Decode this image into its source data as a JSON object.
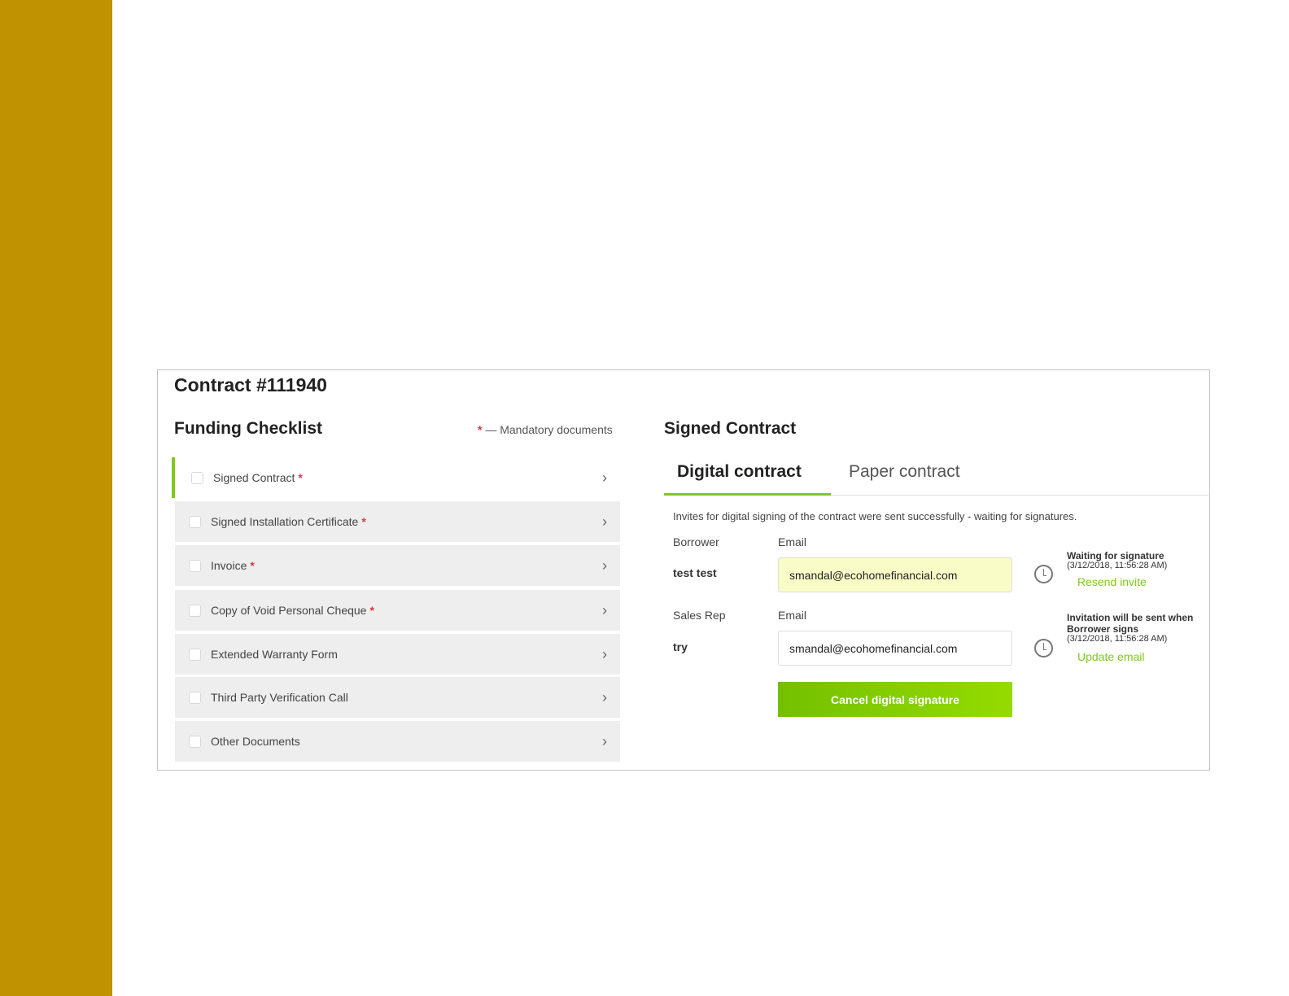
{
  "title": "Contract #111940",
  "checklist": {
    "title": "Funding Checklist",
    "mandatory_star": "*",
    "mandatory_note": "— Mandatory documents",
    "items": [
      {
        "label": "Signed Contract",
        "required": true
      },
      {
        "label": "Signed Installation Certificate",
        "required": true
      },
      {
        "label": "Invoice",
        "required": true
      },
      {
        "label": "Copy of Void Personal Cheque",
        "required": true
      },
      {
        "label": "Extended Warranty Form",
        "required": false
      },
      {
        "label": "Third Party Verification Call",
        "required": false
      },
      {
        "label": "Other Documents",
        "required": false
      }
    ]
  },
  "signed": {
    "title": "Signed Contract",
    "tabs": [
      "Digital contract",
      "Paper contract"
    ],
    "message": "Invites for digital signing of the contract were sent successfully - waiting for signatures.",
    "borrower": {
      "role": "Borrower",
      "email_label": "Email",
      "name": "test test",
      "email": "smandal@ecohomefinancial.com",
      "status": "Waiting for signature",
      "time": "(3/12/2018, 11:56:28 AM)",
      "action": "Resend invite"
    },
    "rep": {
      "role": "Sales Rep",
      "email_label": "Email",
      "name": "try",
      "email": "smandal@ecohomefinancial.com",
      "status": "Invitation will be sent when Borrower signs",
      "time": "(3/12/2018, 11:56:28 AM)",
      "action": "Update email"
    },
    "cancel": "Cancel digital signature"
  },
  "colors": {
    "sidebar": "#c09100",
    "accent": "#7fc91a",
    "highlight_input": "#fafcc8",
    "required": "#d9363e"
  }
}
